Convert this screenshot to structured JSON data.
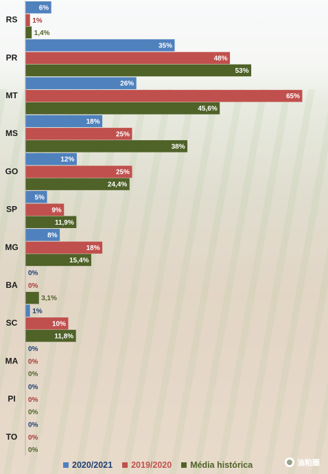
{
  "chart_data": {
    "type": "bar",
    "orientation": "horizontal",
    "categories": [
      "RS",
      "PR",
      "MT",
      "MS",
      "GO",
      "SP",
      "MG",
      "BA",
      "SC",
      "MA",
      "PI",
      "TO"
    ],
    "series": [
      {
        "name": "2020/2021",
        "color": "#4f81bd",
        "label_color": "#1f3f73",
        "values": [
          6,
          35,
          26,
          18,
          12,
          5,
          8,
          0,
          1,
          0,
          0,
          0
        ],
        "labels": [
          "6%",
          "35%",
          "26%",
          "18%",
          "12%",
          "5%",
          "8%",
          "0%",
          "1%",
          "0%",
          "0%",
          "0%"
        ]
      },
      {
        "name": "2019/2020",
        "color": "#c0504d",
        "label_color": "#a83a37",
        "values": [
          1,
          48,
          65,
          25,
          25,
          9,
          18,
          0,
          10,
          0,
          0,
          0
        ],
        "labels": [
          "1%",
          "48%",
          "65%",
          "25%",
          "25%",
          "9%",
          "18%",
          "0%",
          "10%",
          "0%",
          "0%",
          "0%"
        ]
      },
      {
        "name": "Média histórica",
        "color": "#4f6228",
        "label_color": "#4f6228",
        "values": [
          1.4,
          53,
          45.6,
          38,
          24.4,
          11.9,
          15.4,
          3.1,
          11.8,
          0,
          0,
          0
        ],
        "labels": [
          "1,4%",
          "53%",
          "45,6%",
          "38%",
          "24,4%",
          "11,9%",
          "15,4%",
          "3,1%",
          "11,8%",
          "0%",
          "0%",
          "0%"
        ]
      }
    ],
    "xlim": [
      0,
      65
    ],
    "grid": false,
    "legend_position": "bottom"
  },
  "legend": {
    "items": [
      {
        "label": "2020/2021",
        "color": "#4f81bd",
        "text_color": "#1f3f73"
      },
      {
        "label": "2019/2020",
        "color": "#c0504d",
        "text_color": "#c0504d"
      },
      {
        "label": "Média histórica",
        "color": "#4f6228",
        "text_color": "#4f6228"
      }
    ]
  },
  "watermark": {
    "text": "油粕圈",
    "icon": "wechat-logo-icon"
  }
}
